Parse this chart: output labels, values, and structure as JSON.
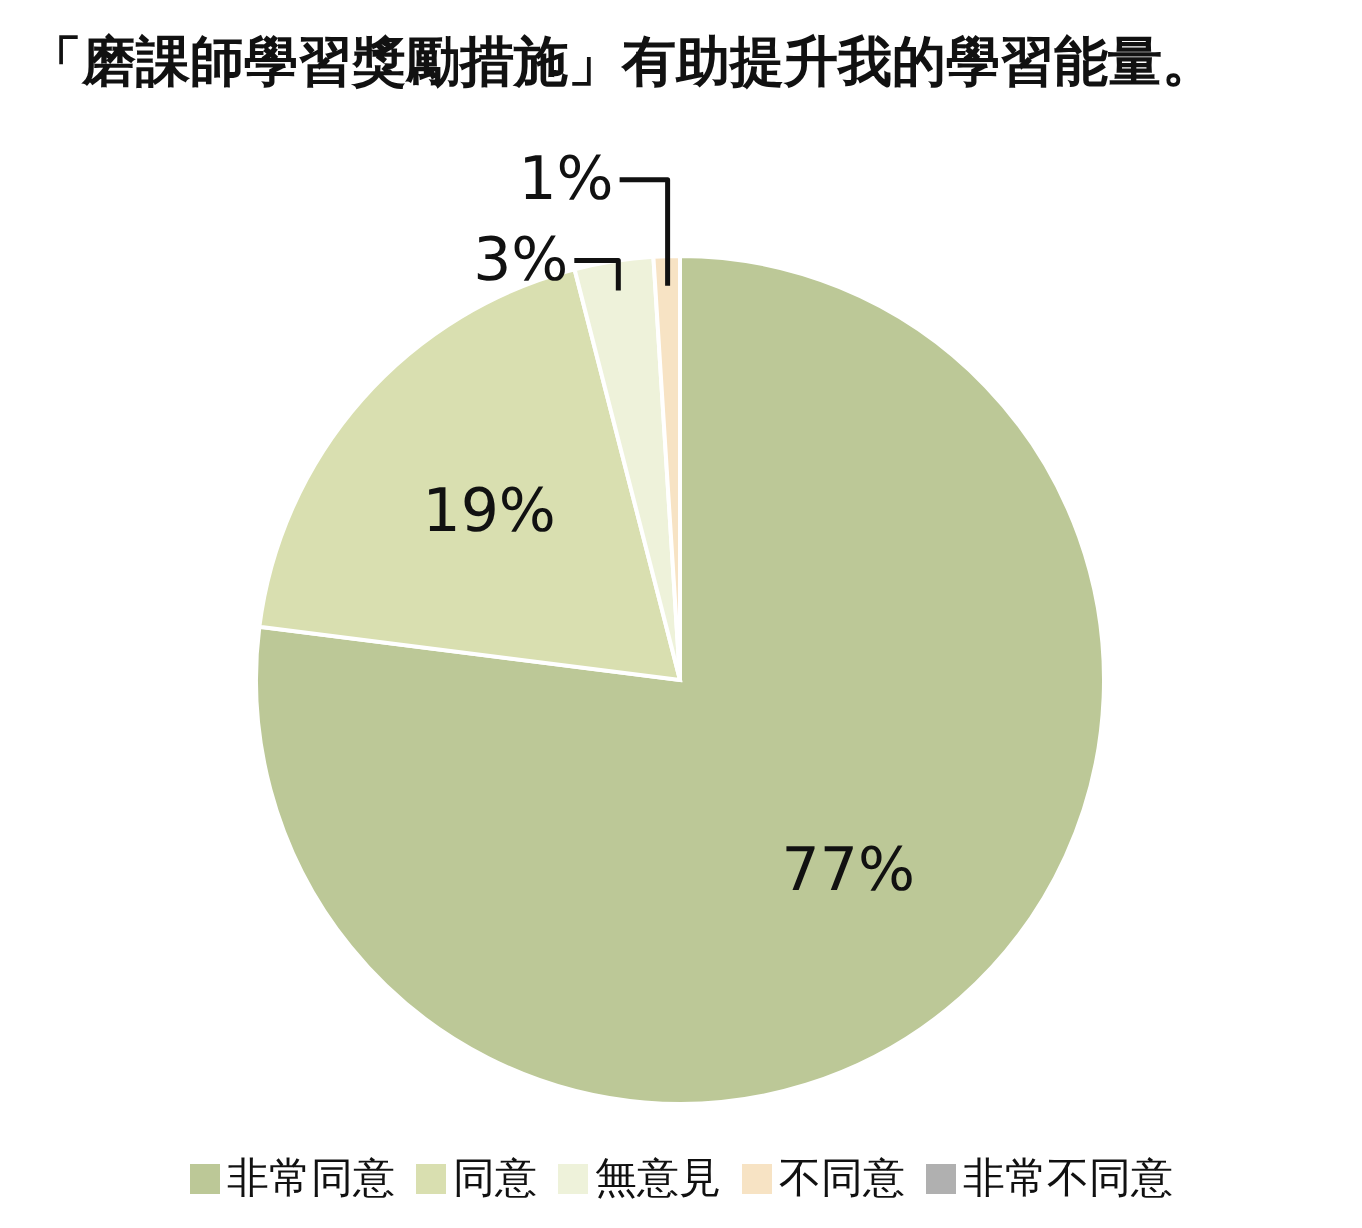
{
  "chart_data": {
    "type": "pie",
    "title": "「磨課師學習獎勵措施」有助提升我的學習能量。",
    "categories": [
      "非常同意",
      "同意",
      "無意見",
      "不同意",
      "非常不同意"
    ],
    "values": [
      77,
      19,
      3,
      1,
      0
    ],
    "colors": [
      "#bcc897",
      "#d9dfb0",
      "#eef2da",
      "#f7e3c4",
      "#b0b0b0"
    ],
    "value_labels": [
      "77%",
      "19%",
      "3%",
      "1%",
      null
    ],
    "legend": "bottom"
  }
}
